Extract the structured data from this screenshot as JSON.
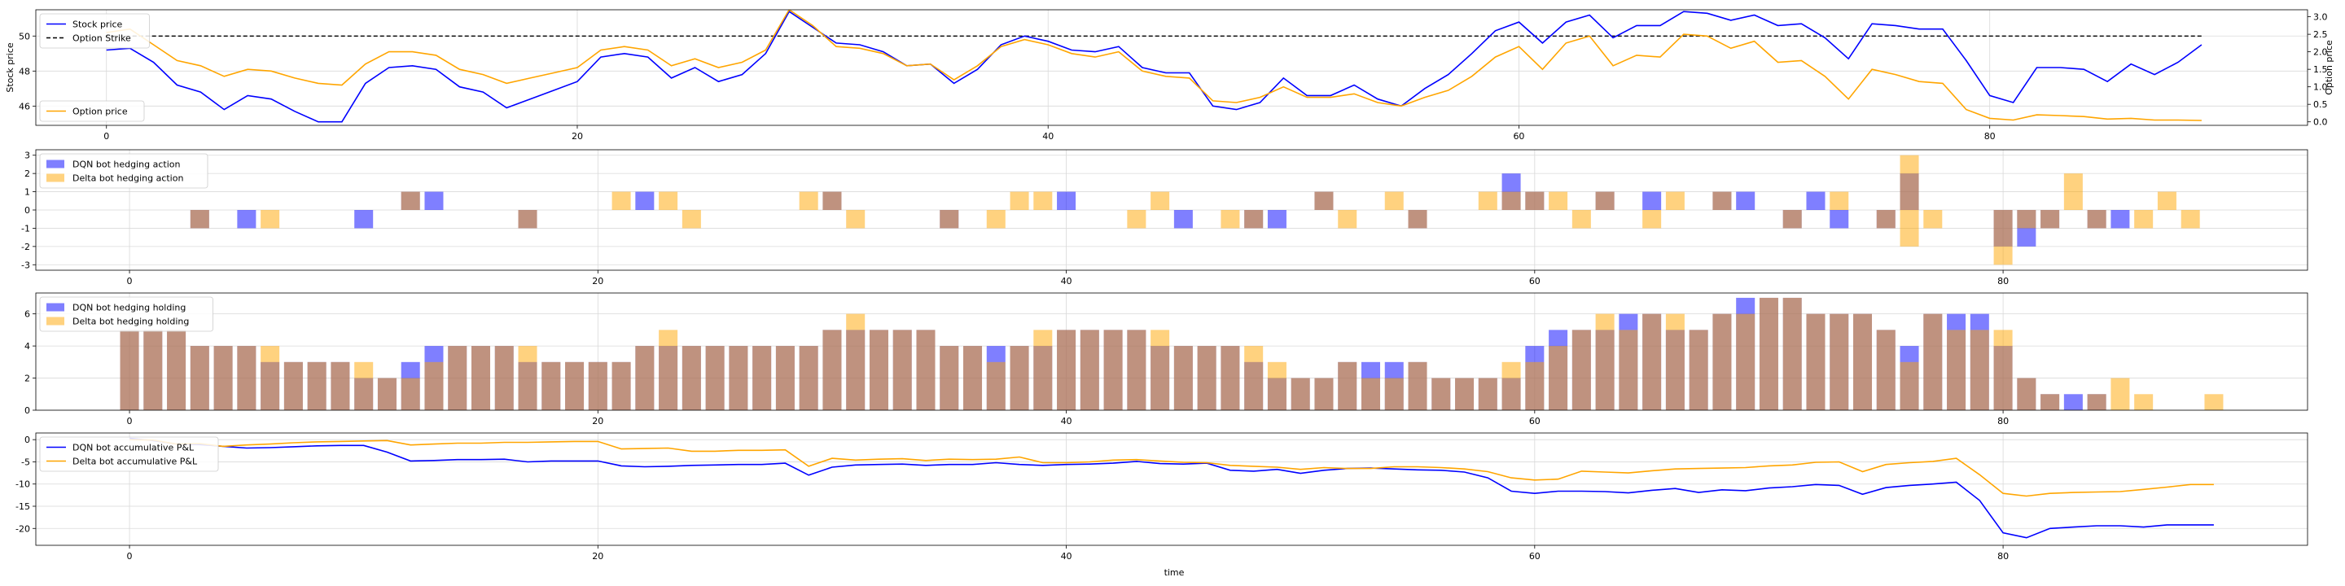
{
  "figure": {
    "xlabel": "time"
  },
  "chart_data": [
    {
      "type": "line",
      "ylabel": "Stock price",
      "ylabel_right": "Option price",
      "xlim": [
        -3,
        93.5
      ],
      "ylim": [
        44.9,
        51.5
      ],
      "ylim_right": [
        -0.1,
        3.2
      ],
      "yticks": [
        46,
        48,
        50
      ],
      "yticks_right": [
        0.0,
        0.5,
        1.0,
        1.5,
        2.0,
        2.5,
        3.0
      ],
      "xticks": [
        0,
        20,
        40,
        60,
        80
      ],
      "grid": true,
      "series": [
        {
          "name": "Stock price",
          "color": "#0000ff",
          "axis": "left",
          "values": [
            49.2,
            49.3,
            48.5,
            47.2,
            46.8,
            45.8,
            46.6,
            46.4,
            45.7,
            45.1,
            45.1,
            47.3,
            48.2,
            48.3,
            48.1,
            47.1,
            46.8,
            45.9,
            46.4,
            46.9,
            47.4,
            48.8,
            49.0,
            48.8,
            47.6,
            48.2,
            47.4,
            47.8,
            49.0,
            51.4,
            50.5,
            49.6,
            49.5,
            49.1,
            48.3,
            48.4,
            47.3,
            48.1,
            49.5,
            50.0,
            49.7,
            49.2,
            49.1,
            49.4,
            48.2,
            47.9,
            47.9,
            46.0,
            45.8,
            46.2,
            47.6,
            46.6,
            46.6,
            47.2,
            46.4,
            46.0,
            47.0,
            47.8,
            49.0,
            50.3,
            50.8,
            49.6,
            50.8,
            51.2,
            49.9,
            50.6,
            50.6,
            51.4,
            51.3,
            50.9,
            51.2,
            50.6,
            50.7,
            49.9,
            48.7,
            50.7,
            50.6,
            50.4,
            50.4,
            48.6,
            46.6,
            46.2,
            48.2,
            48.2,
            48.1,
            47.4,
            48.4,
            47.8,
            48.5,
            49.5
          ]
        },
        {
          "name": "Option price",
          "color": "#ffa500",
          "axis": "right",
          "values": [
            2.55,
            2.65,
            2.2,
            1.75,
            1.6,
            1.3,
            1.5,
            1.45,
            1.25,
            1.1,
            1.05,
            1.65,
            2.0,
            2.0,
            1.9,
            1.5,
            1.35,
            1.1,
            1.25,
            1.4,
            1.55,
            2.05,
            2.15,
            2.05,
            1.6,
            1.8,
            1.55,
            1.7,
            2.05,
            3.2,
            2.75,
            2.15,
            2.1,
            1.95,
            1.6,
            1.65,
            1.2,
            1.6,
            2.15,
            2.35,
            2.2,
            1.95,
            1.85,
            2.0,
            1.45,
            1.3,
            1.25,
            0.6,
            0.55,
            0.7,
            1.0,
            0.7,
            0.7,
            0.8,
            0.55,
            0.45,
            0.7,
            0.9,
            1.3,
            1.85,
            2.15,
            1.5,
            2.25,
            2.45,
            1.6,
            1.9,
            1.85,
            2.5,
            2.45,
            2.1,
            2.3,
            1.7,
            1.75,
            1.3,
            0.65,
            1.5,
            1.35,
            1.15,
            1.1,
            0.35,
            0.1,
            0.05,
            0.2,
            0.18,
            0.15,
            0.08,
            0.1,
            0.05,
            0.05,
            0.04
          ]
        }
      ],
      "reference_line": {
        "name": "Option Strike",
        "y": 50.0,
        "color": "#000000",
        "style": "dashed"
      },
      "legends": [
        {
          "position": "top-left",
          "entries": [
            "Stock price",
            "Option Strike"
          ]
        },
        {
          "position": "bottom-left",
          "entries": [
            "Option price"
          ]
        }
      ]
    },
    {
      "type": "bar",
      "xlim": [
        -4,
        93
      ],
      "ylim": [
        -3.3,
        3.3
      ],
      "yticks": [
        -3,
        -2,
        -1,
        0,
        1,
        2,
        3
      ],
      "xticks": [
        0,
        20,
        40,
        60,
        80
      ],
      "grid": true,
      "legend": "top-left",
      "bar_alpha": 0.5,
      "series": [
        {
          "name": "DQN bot hedging action",
          "color": "#0000ff",
          "points": [
            [
              3,
              -1
            ],
            [
              5,
              -1
            ],
            [
              10,
              -1
            ],
            [
              12,
              1
            ],
            [
              13,
              1
            ],
            [
              17,
              -1
            ],
            [
              22,
              1
            ],
            [
              30,
              1
            ],
            [
              35,
              -1
            ],
            [
              40,
              1
            ],
            [
              45,
              -1
            ],
            [
              48,
              -1
            ],
            [
              49,
              -1
            ],
            [
              51,
              1
            ],
            [
              55,
              -1
            ],
            [
              59,
              2
            ],
            [
              60,
              1
            ],
            [
              63,
              1
            ],
            [
              65,
              1
            ],
            [
              68,
              1
            ],
            [
              69,
              1
            ],
            [
              71,
              -1
            ],
            [
              72,
              1
            ],
            [
              73,
              -1
            ],
            [
              75,
              -1
            ],
            [
              76,
              2
            ],
            [
              80,
              -2
            ],
            [
              81,
              -2
            ],
            [
              82,
              -1
            ],
            [
              84,
              -1
            ],
            [
              85,
              -1
            ]
          ]
        },
        {
          "name": "Delta bot hedging action",
          "color": "#ffa500",
          "points": [
            [
              3,
              -1
            ],
            [
              6,
              -1
            ],
            [
              12,
              1
            ],
            [
              17,
              -1
            ],
            [
              21,
              1
            ],
            [
              23,
              1
            ],
            [
              24,
              -1
            ],
            [
              29,
              1
            ],
            [
              30,
              1
            ],
            [
              31,
              -1
            ],
            [
              35,
              -1
            ],
            [
              37,
              -1
            ],
            [
              38,
              1
            ],
            [
              39,
              1
            ],
            [
              43,
              -1
            ],
            [
              44,
              1
            ],
            [
              47,
              -1
            ],
            [
              48,
              -1
            ],
            [
              51,
              1
            ],
            [
              52,
              -1
            ],
            [
              54,
              1
            ],
            [
              55,
              -1
            ],
            [
              58,
              1
            ],
            [
              59,
              1
            ],
            [
              60,
              1
            ],
            [
              61,
              1
            ],
            [
              62,
              -1
            ],
            [
              63,
              1
            ],
            [
              65,
              -1
            ],
            [
              66,
              1
            ],
            [
              68,
              1
            ],
            [
              71,
              -1
            ],
            [
              73,
              1
            ],
            [
              75,
              -1
            ],
            [
              76,
              -2
            ],
            [
              76,
              3
            ],
            [
              77,
              -1
            ],
            [
              80,
              -3
            ],
            [
              81,
              -1
            ],
            [
              82,
              -1
            ],
            [
              83,
              2
            ],
            [
              84,
              -1
            ],
            [
              86,
              -1
            ],
            [
              87,
              1
            ],
            [
              88,
              -1
            ]
          ]
        }
      ]
    },
    {
      "type": "bar",
      "xlim": [
        -4,
        93
      ],
      "ylim": [
        0,
        7.3
      ],
      "yticks": [
        0,
        2,
        4,
        6
      ],
      "xticks": [
        0,
        20,
        40,
        60,
        80
      ],
      "grid": true,
      "legend": "top-left",
      "bar_alpha": 0.5,
      "series": [
        {
          "name": "DQN bot hedging holding",
          "color": "#0000ff",
          "values": [
            5,
            5,
            5,
            4,
            4,
            4,
            3,
            3,
            3,
            3,
            2,
            2,
            3,
            4,
            4,
            4,
            4,
            3,
            3,
            3,
            3,
            3,
            4,
            4,
            4,
            4,
            4,
            4,
            4,
            4,
            5,
            5,
            5,
            5,
            5,
            4,
            4,
            4,
            4,
            4,
            5,
            5,
            5,
            5,
            4,
            4,
            4,
            4,
            3,
            2,
            2,
            2,
            3,
            3,
            3,
            3,
            2,
            2,
            2,
            2,
            4,
            5,
            5,
            5,
            6,
            6,
            5,
            5,
            6,
            7,
            7,
            7,
            6,
            6,
            6,
            5,
            4,
            6,
            6,
            6,
            4,
            2,
            1,
            1,
            1,
            0,
            0,
            0,
            0,
            0
          ]
        },
        {
          "name": "Delta bot hedging holding",
          "color": "#ffa500",
          "values": [
            5,
            5,
            5,
            4,
            4,
            4,
            4,
            3,
            3,
            3,
            3,
            2,
            2,
            3,
            4,
            4,
            4,
            4,
            3,
            3,
            3,
            3,
            4,
            5,
            4,
            4,
            4,
            4,
            4,
            4,
            5,
            6,
            5,
            5,
            5,
            4,
            4,
            3,
            4,
            5,
            5,
            5,
            5,
            5,
            5,
            4,
            4,
            4,
            4,
            3,
            2,
            2,
            3,
            2,
            2,
            3,
            2,
            2,
            2,
            3,
            3,
            4,
            5,
            6,
            5,
            6,
            6,
            5,
            6,
            6,
            7,
            7,
            6,
            6,
            6,
            5,
            3,
            6,
            5,
            5,
            5,
            2,
            1,
            0,
            1,
            2,
            1,
            0,
            0,
            1
          ]
        }
      ]
    },
    {
      "type": "line",
      "xlabel": "time",
      "xlim": [
        -4,
        93
      ],
      "ylim": [
        -23.8,
        1.5
      ],
      "yticks": [
        0,
        -5,
        -10,
        -15,
        -20
      ],
      "xticks": [
        0,
        20,
        40,
        60,
        80
      ],
      "grid": true,
      "legend": "top-left",
      "series": [
        {
          "name": "DQN bot accumulative P&L",
          "color": "#0000ff",
          "values": [
            0.3,
            -0.2,
            -1.0,
            -1.1,
            -1.5,
            -1.9,
            -1.8,
            -1.6,
            -1.4,
            -1.3,
            -1.3,
            -2.8,
            -4.8,
            -4.7,
            -4.5,
            -4.5,
            -4.4,
            -5.0,
            -4.8,
            -4.8,
            -4.8,
            -5.9,
            -6.1,
            -6.0,
            -5.8,
            -5.7,
            -5.6,
            -5.6,
            -5.3,
            -8.0,
            -6.2,
            -5.7,
            -5.6,
            -5.5,
            -5.8,
            -5.6,
            -5.6,
            -5.2,
            -5.6,
            -5.8,
            -5.6,
            -5.5,
            -5.3,
            -4.9,
            -5.4,
            -5.5,
            -5.3,
            -6.9,
            -7.1,
            -6.7,
            -7.6,
            -6.9,
            -6.5,
            -6.4,
            -6.6,
            -6.8,
            -6.9,
            -7.3,
            -8.6,
            -11.6,
            -12.1,
            -11.6,
            -11.6,
            -11.7,
            -12.0,
            -11.4,
            -11.0,
            -11.9,
            -11.3,
            -11.5,
            -10.9,
            -10.6,
            -10.1,
            -10.3,
            -12.3,
            -10.8,
            -10.3,
            -10.0,
            -9.6,
            -13.7,
            -21.0,
            -22.1,
            -20.0,
            -19.7,
            -19.4,
            -19.4,
            -19.7,
            -19.2,
            -19.2,
            -19.2
          ]
        },
        {
          "name": "Delta bot accumulative P&L",
          "color": "#ffa500",
          "values": [
            0.0,
            -0.1,
            -1.0,
            -0.9,
            -1.5,
            -1.2,
            -1.0,
            -0.7,
            -0.5,
            -0.4,
            -0.3,
            -0.2,
            -1.2,
            -1.0,
            -0.8,
            -0.8,
            -0.6,
            -0.6,
            -0.5,
            -0.4,
            -0.4,
            -2.1,
            -2.0,
            -1.9,
            -2.6,
            -2.6,
            -2.4,
            -2.4,
            -2.3,
            -6.0,
            -4.2,
            -4.6,
            -4.4,
            -4.3,
            -4.7,
            -4.4,
            -4.5,
            -4.4,
            -3.9,
            -5.2,
            -5.2,
            -5.0,
            -4.6,
            -4.5,
            -4.8,
            -5.1,
            -5.2,
            -5.8,
            -6.0,
            -6.2,
            -6.7,
            -6.3,
            -6.5,
            -6.5,
            -6.1,
            -6.1,
            -6.3,
            -6.6,
            -7.2,
            -8.6,
            -9.1,
            -8.9,
            -7.1,
            -7.3,
            -7.5,
            -7.0,
            -6.6,
            -6.5,
            -6.4,
            -6.3,
            -5.9,
            -5.7,
            -5.1,
            -5.0,
            -7.2,
            -5.6,
            -5.2,
            -4.9,
            -4.2,
            -7.9,
            -12.1,
            -12.7,
            -12.1,
            -11.9,
            -11.8,
            -11.7,
            -11.2,
            -10.7,
            -10.1,
            -10.1
          ]
        }
      ]
    }
  ]
}
